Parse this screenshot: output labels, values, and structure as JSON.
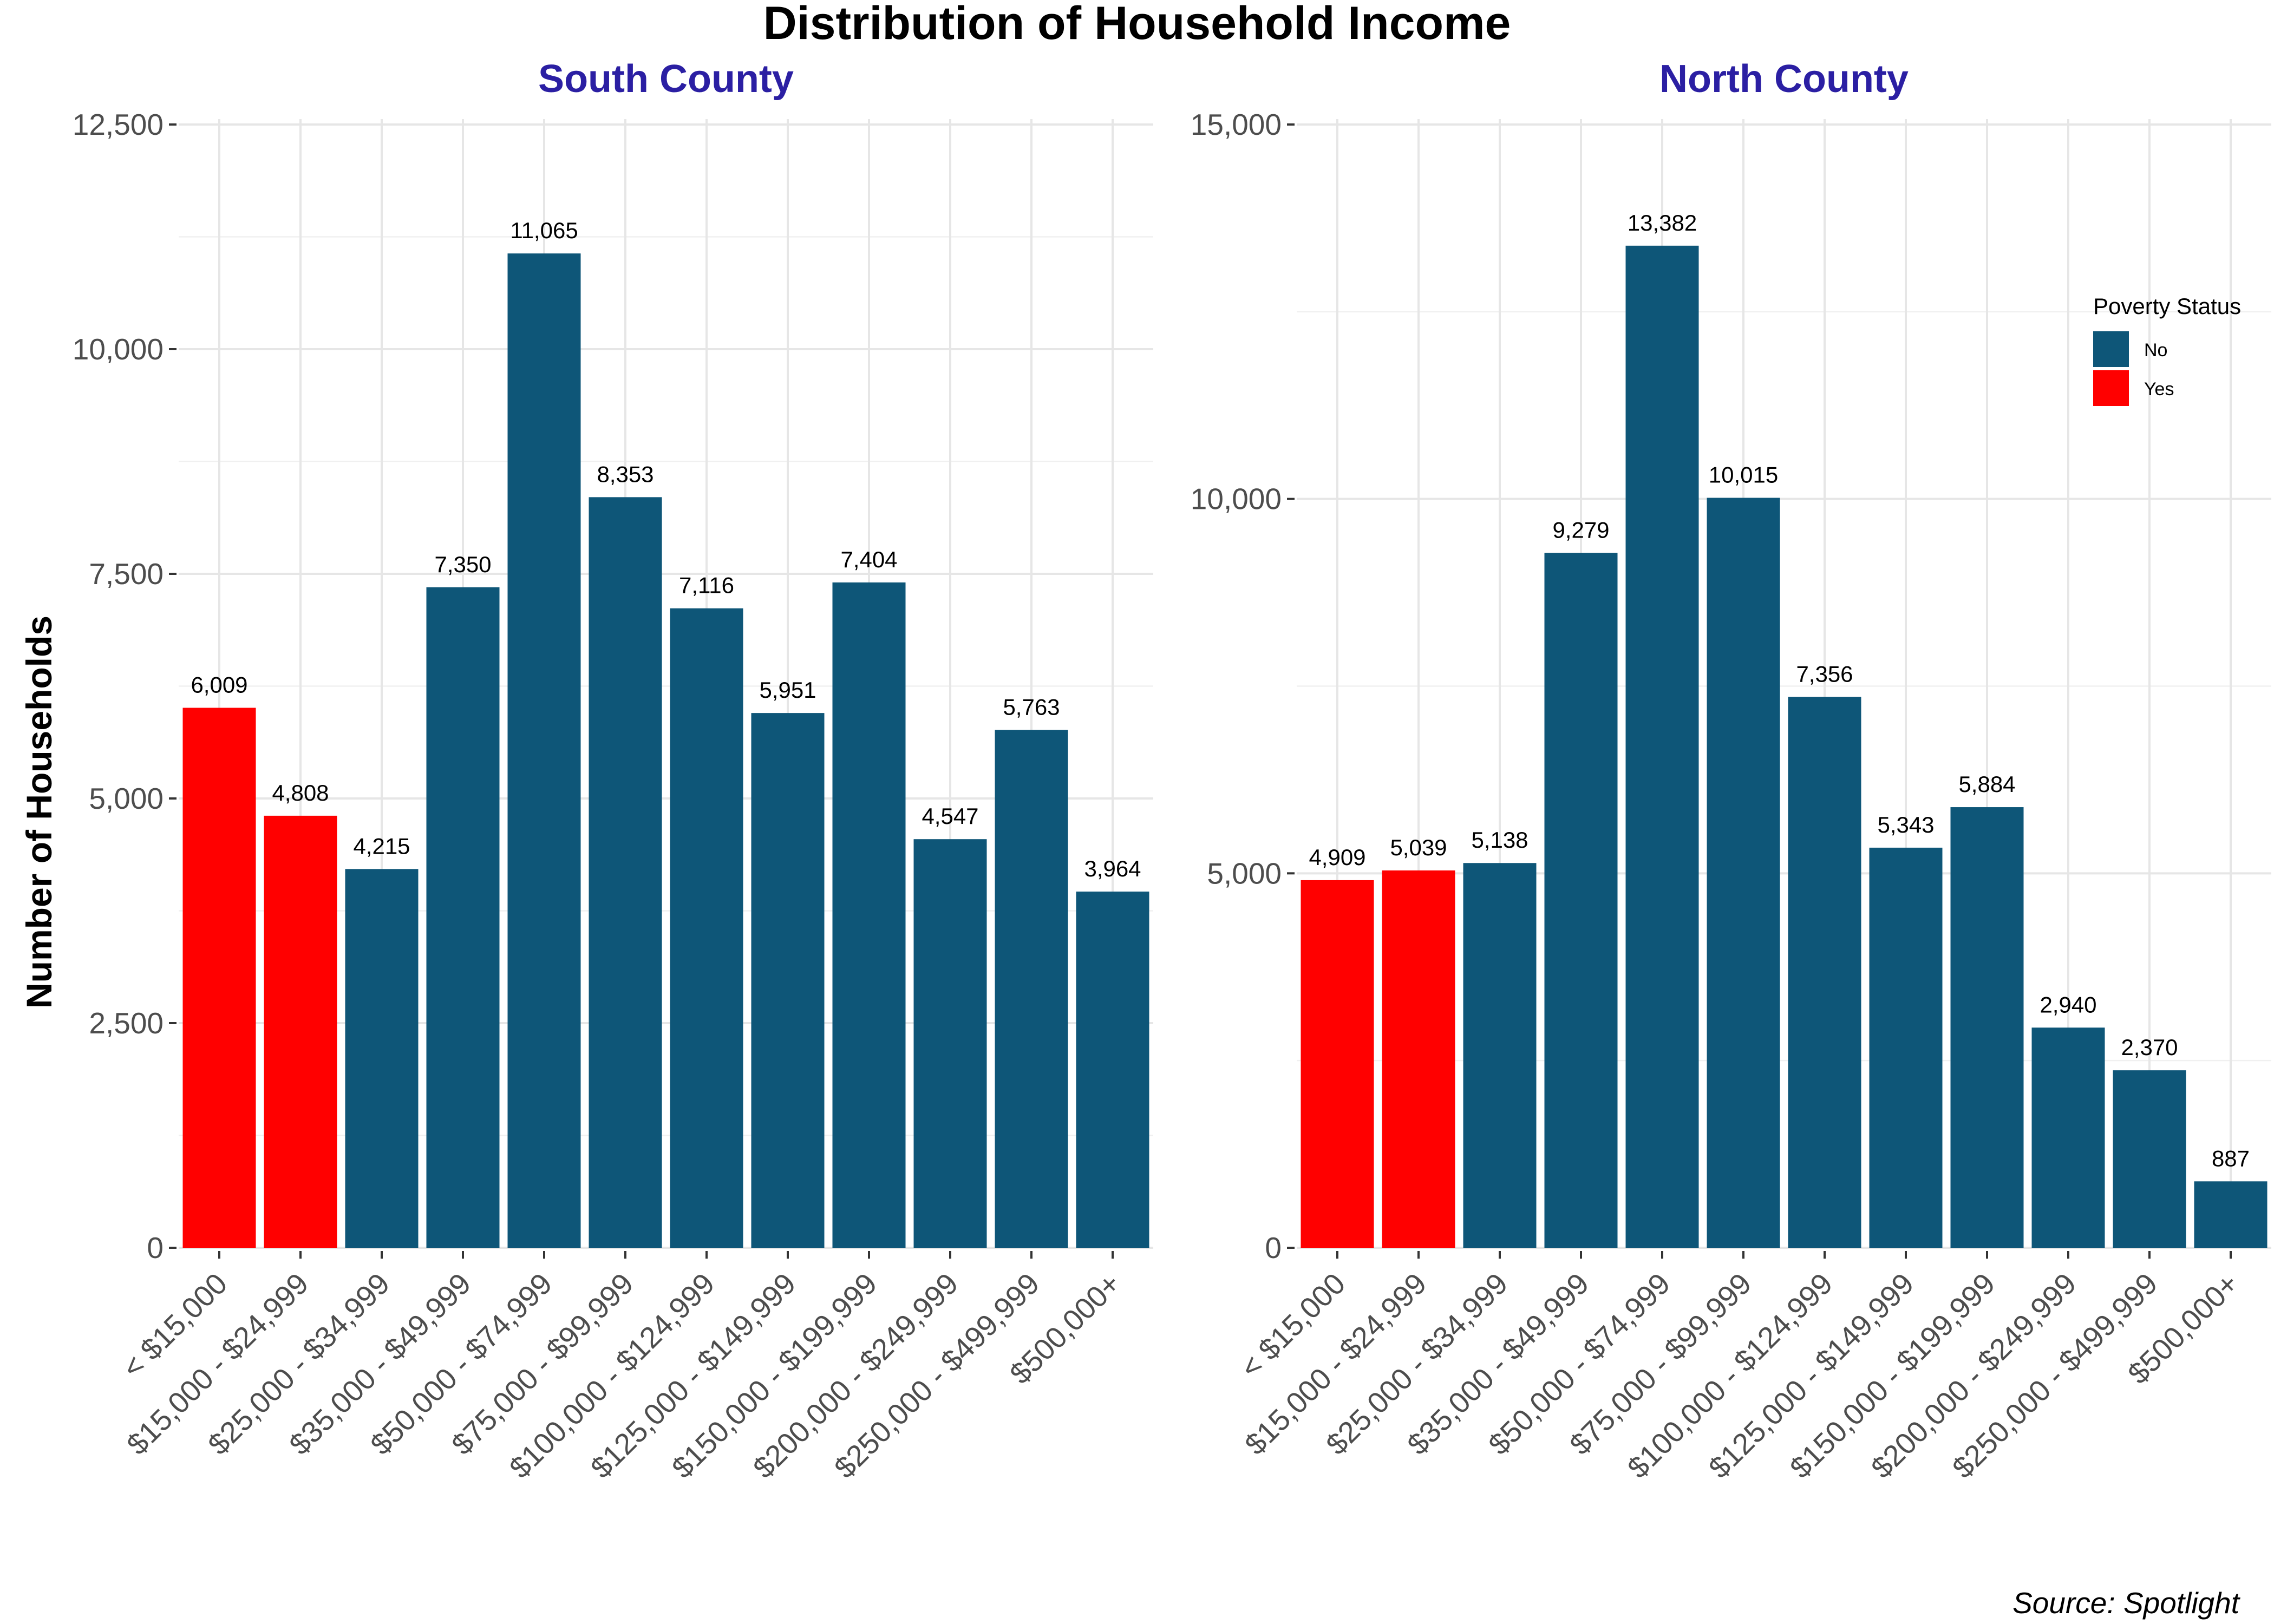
{
  "title": "Distribution of Household Income",
  "ylabel": "Number of Households",
  "source": "Source: Spotlight",
  "legend": {
    "title": "Poverty Status",
    "items": [
      {
        "label": "No",
        "color": "#0e5678"
      },
      {
        "label": "Yes",
        "color": "#ff0000"
      }
    ]
  },
  "colors": {
    "No": "#0e5678",
    "Yes": "#ff0000",
    "panel_title": "#2b1fa3"
  },
  "chart_data": [
    {
      "type": "bar",
      "title": "South County",
      "ylabel": "Number of Households",
      "categories": [
        "< $15,000",
        "$15,000 - $24,999",
        "$25,000 - $34,999",
        "$35,000 - $49,999",
        "$50,000 - $74,999",
        "$75,000 - $99,999",
        "$100,000 - $124,999",
        "$125,000 - $149,999",
        "$150,000 - $199,999",
        "$200,000 - $249,999",
        "$250,000 - $499,999",
        "$500,000+"
      ],
      "values": [
        6009,
        4808,
        4215,
        7350,
        11065,
        8353,
        7116,
        5951,
        7404,
        4547,
        5763,
        3964
      ],
      "value_labels": [
        "6,009",
        "4,808",
        "4,215",
        "7,350",
        "11,065",
        "8,353",
        "7,116",
        "5,951",
        "7,404",
        "4,547",
        "5,763",
        "3,964"
      ],
      "poverty_status": [
        "Yes",
        "Yes",
        "No",
        "No",
        "No",
        "No",
        "No",
        "No",
        "No",
        "No",
        "No",
        "No"
      ],
      "ylim": [
        0,
        12500
      ],
      "yticks": [
        0,
        2500,
        5000,
        7500,
        10000,
        12500
      ],
      "ytick_labels": [
        "0",
        "2,500",
        "5,000",
        "7,500",
        "10,000",
        "12,500"
      ],
      "grid": true
    },
    {
      "type": "bar",
      "title": "North County",
      "categories": [
        "< $15,000",
        "$15,000 - $24,999",
        "$25,000 - $34,999",
        "$35,000 - $49,999",
        "$50,000 - $74,999",
        "$75,000 - $99,999",
        "$100,000 - $124,999",
        "$125,000 - $149,999",
        "$150,000 - $199,999",
        "$200,000 - $249,999",
        "$250,000 - $499,999",
        "$500,000+"
      ],
      "values": [
        4909,
        5039,
        5138,
        9279,
        13382,
        10015,
        7356,
        5343,
        5884,
        2940,
        2370,
        887
      ],
      "value_labels": [
        "4,909",
        "5,039",
        "5,138",
        "9,279",
        "13,382",
        "10,015",
        "7,356",
        "5,343",
        "5,884",
        "2,940",
        "2,370",
        "887"
      ],
      "poverty_status": [
        "Yes",
        "Yes",
        "No",
        "No",
        "No",
        "No",
        "No",
        "No",
        "No",
        "No",
        "No",
        "No"
      ],
      "ylim": [
        0,
        15000
      ],
      "yticks": [
        0,
        5000,
        10000,
        15000
      ],
      "ytick_labels": [
        "0",
        "5,000",
        "10,000",
        "15,000"
      ],
      "grid": true,
      "legend_position": "top-right"
    }
  ]
}
